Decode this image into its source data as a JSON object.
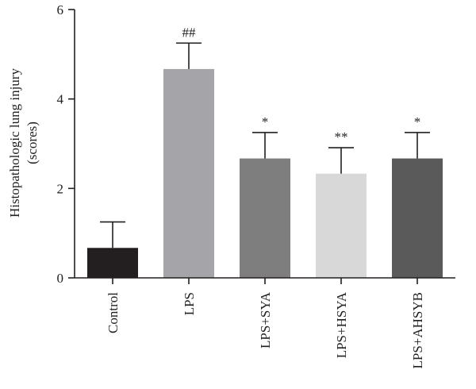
{
  "chart_data": {
    "type": "bar",
    "title": "",
    "xlabel": "",
    "ylabel": "Histopathologic lung injury",
    "ylabel_unit": "(scores)",
    "ylim": [
      0,
      6
    ],
    "yticks": [
      0,
      2,
      4,
      6
    ],
    "grid": false,
    "categories": [
      "Control",
      "LPS",
      "LPS+SYA",
      "LPS+HSYA",
      "LPS+AHSYB"
    ],
    "values": [
      0.67,
      4.67,
      2.67,
      2.33,
      2.67
    ],
    "errors": [
      0.58,
      0.58,
      0.58,
      0.58,
      0.58
    ],
    "annotations": [
      "",
      "##",
      "*",
      "**",
      "*"
    ],
    "colors": [
      "#231f20",
      "#a5a4a9",
      "#7e7e7e",
      "#d8d8d8",
      "#5a5a5a"
    ]
  }
}
